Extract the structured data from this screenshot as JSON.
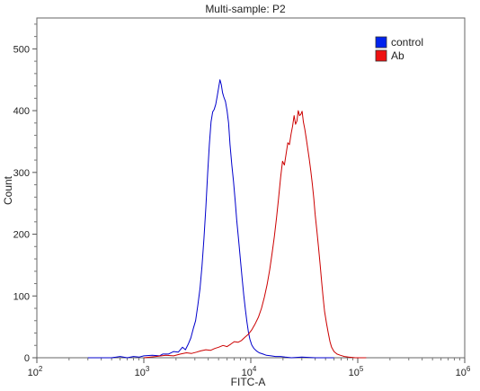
{
  "chart_data": {
    "type": "line",
    "title": "Multi-sample: P2",
    "xlabel": "FITC-A",
    "ylabel": "Count",
    "x_scale": "log",
    "xlim": [
      100,
      1000000
    ],
    "ylim": [
      0,
      550
    ],
    "x_ticks": [
      {
        "value": 100,
        "base": "10",
        "exp": "2"
      },
      {
        "value": 1000,
        "base": "10",
        "exp": "3"
      },
      {
        "value": 10000,
        "base": "10",
        "exp": "4"
      },
      {
        "value": 100000,
        "base": "10",
        "exp": "5"
      },
      {
        "value": 1000000,
        "base": "10",
        "exp": "6"
      }
    ],
    "y_ticks": [
      0,
      100,
      200,
      300,
      400,
      500
    ],
    "legend_position": "top-right",
    "series": [
      {
        "name": "control",
        "color": "#0000cc",
        "legend_color": "#0022ee",
        "points": [
          [
            300,
            0
          ],
          [
            500,
            0
          ],
          [
            600,
            2
          ],
          [
            700,
            0
          ],
          [
            800,
            2
          ],
          [
            900,
            1
          ],
          [
            1000,
            3
          ],
          [
            1200,
            4
          ],
          [
            1400,
            3
          ],
          [
            1500,
            6
          ],
          [
            1700,
            6
          ],
          [
            1900,
            10
          ],
          [
            2100,
            9
          ],
          [
            2300,
            17
          ],
          [
            2450,
            13
          ],
          [
            2600,
            22
          ],
          [
            2750,
            32
          ],
          [
            2900,
            47
          ],
          [
            3050,
            60
          ],
          [
            3200,
            85
          ],
          [
            3350,
            112
          ],
          [
            3500,
            148
          ],
          [
            3650,
            193
          ],
          [
            3800,
            243
          ],
          [
            3950,
            298
          ],
          [
            4100,
            345
          ],
          [
            4250,
            382
          ],
          [
            4400,
            398
          ],
          [
            4550,
            402
          ],
          [
            4700,
            410
          ],
          [
            4850,
            423
          ],
          [
            5000,
            437
          ],
          [
            5150,
            450
          ],
          [
            5300,
            442
          ],
          [
            5450,
            429
          ],
          [
            5600,
            422
          ],
          [
            5800,
            415
          ],
          [
            6000,
            400
          ],
          [
            6200,
            380
          ],
          [
            6400,
            345
          ],
          [
            6650,
            312
          ],
          [
            6900,
            285
          ],
          [
            7150,
            253
          ],
          [
            7400,
            222
          ],
          [
            7700,
            190
          ],
          [
            8000,
            158
          ],
          [
            8300,
            128
          ],
          [
            8600,
            101
          ],
          [
            8900,
            78
          ],
          [
            9200,
            58
          ],
          [
            9500,
            42
          ],
          [
            9800,
            30
          ],
          [
            10200,
            21
          ],
          [
            10700,
            15
          ],
          [
            11300,
            11
          ],
          [
            12000,
            8
          ],
          [
            13000,
            6
          ],
          [
            14000,
            4
          ],
          [
            15500,
            3
          ],
          [
            17000,
            2
          ],
          [
            19000,
            2
          ],
          [
            21000,
            1
          ],
          [
            24000,
            0
          ],
          [
            30000,
            1
          ],
          [
            40000,
            0
          ],
          [
            60000,
            0
          ]
        ]
      },
      {
        "name": "Ab",
        "color": "#cc0000",
        "legend_color": "#ee1111",
        "points": [
          [
            1000,
            0
          ],
          [
            1300,
            2
          ],
          [
            1600,
            4
          ],
          [
            1900,
            3
          ],
          [
            2200,
            6
          ],
          [
            2500,
            8
          ],
          [
            2800,
            7
          ],
          [
            3100,
            9
          ],
          [
            3400,
            11
          ],
          [
            3800,
            13
          ],
          [
            4200,
            12
          ],
          [
            4600,
            15
          ],
          [
            5000,
            17
          ],
          [
            5500,
            20
          ],
          [
            6000,
            18
          ],
          [
            6500,
            22
          ],
          [
            7000,
            26
          ],
          [
            7600,
            25
          ],
          [
            8200,
            28
          ],
          [
            8800,
            33
          ],
          [
            9500,
            38
          ],
          [
            10200,
            45
          ],
          [
            11000,
            55
          ],
          [
            11800,
            66
          ],
          [
            12600,
            80
          ],
          [
            13400,
            98
          ],
          [
            14200,
            118
          ],
          [
            15000,
            142
          ],
          [
            15800,
            168
          ],
          [
            16600,
            196
          ],
          [
            17400,
            226
          ],
          [
            18200,
            258
          ],
          [
            19000,
            292
          ],
          [
            19800,
            318
          ],
          [
            20600,
            312
          ],
          [
            21400,
            330
          ],
          [
            22200,
            348
          ],
          [
            23000,
            345
          ],
          [
            23800,
            362
          ],
          [
            24600,
            375
          ],
          [
            25400,
            392
          ],
          [
            26200,
            378
          ],
          [
            27000,
            383
          ],
          [
            27800,
            400
          ],
          [
            28600,
            392
          ],
          [
            29400,
            394
          ],
          [
            30200,
            399
          ],
          [
            31000,
            382
          ],
          [
            32000,
            370
          ],
          [
            33000,
            355
          ],
          [
            34000,
            340
          ],
          [
            35200,
            322
          ],
          [
            36400,
            302
          ],
          [
            37600,
            282
          ],
          [
            38800,
            258
          ],
          [
            40000,
            232
          ],
          [
            41500,
            206
          ],
          [
            43000,
            178
          ],
          [
            44500,
            150
          ],
          [
            46000,
            122
          ],
          [
            47500,
            97
          ],
          [
            49000,
            75
          ],
          [
            51000,
            56
          ],
          [
            53000,
            40
          ],
          [
            55000,
            26
          ],
          [
            57000,
            17
          ],
          [
            60000,
            10
          ],
          [
            64000,
            6
          ],
          [
            69000,
            4
          ],
          [
            75000,
            2
          ],
          [
            82000,
            1
          ],
          [
            95000,
            0
          ],
          [
            120000,
            0
          ]
        ]
      }
    ]
  }
}
